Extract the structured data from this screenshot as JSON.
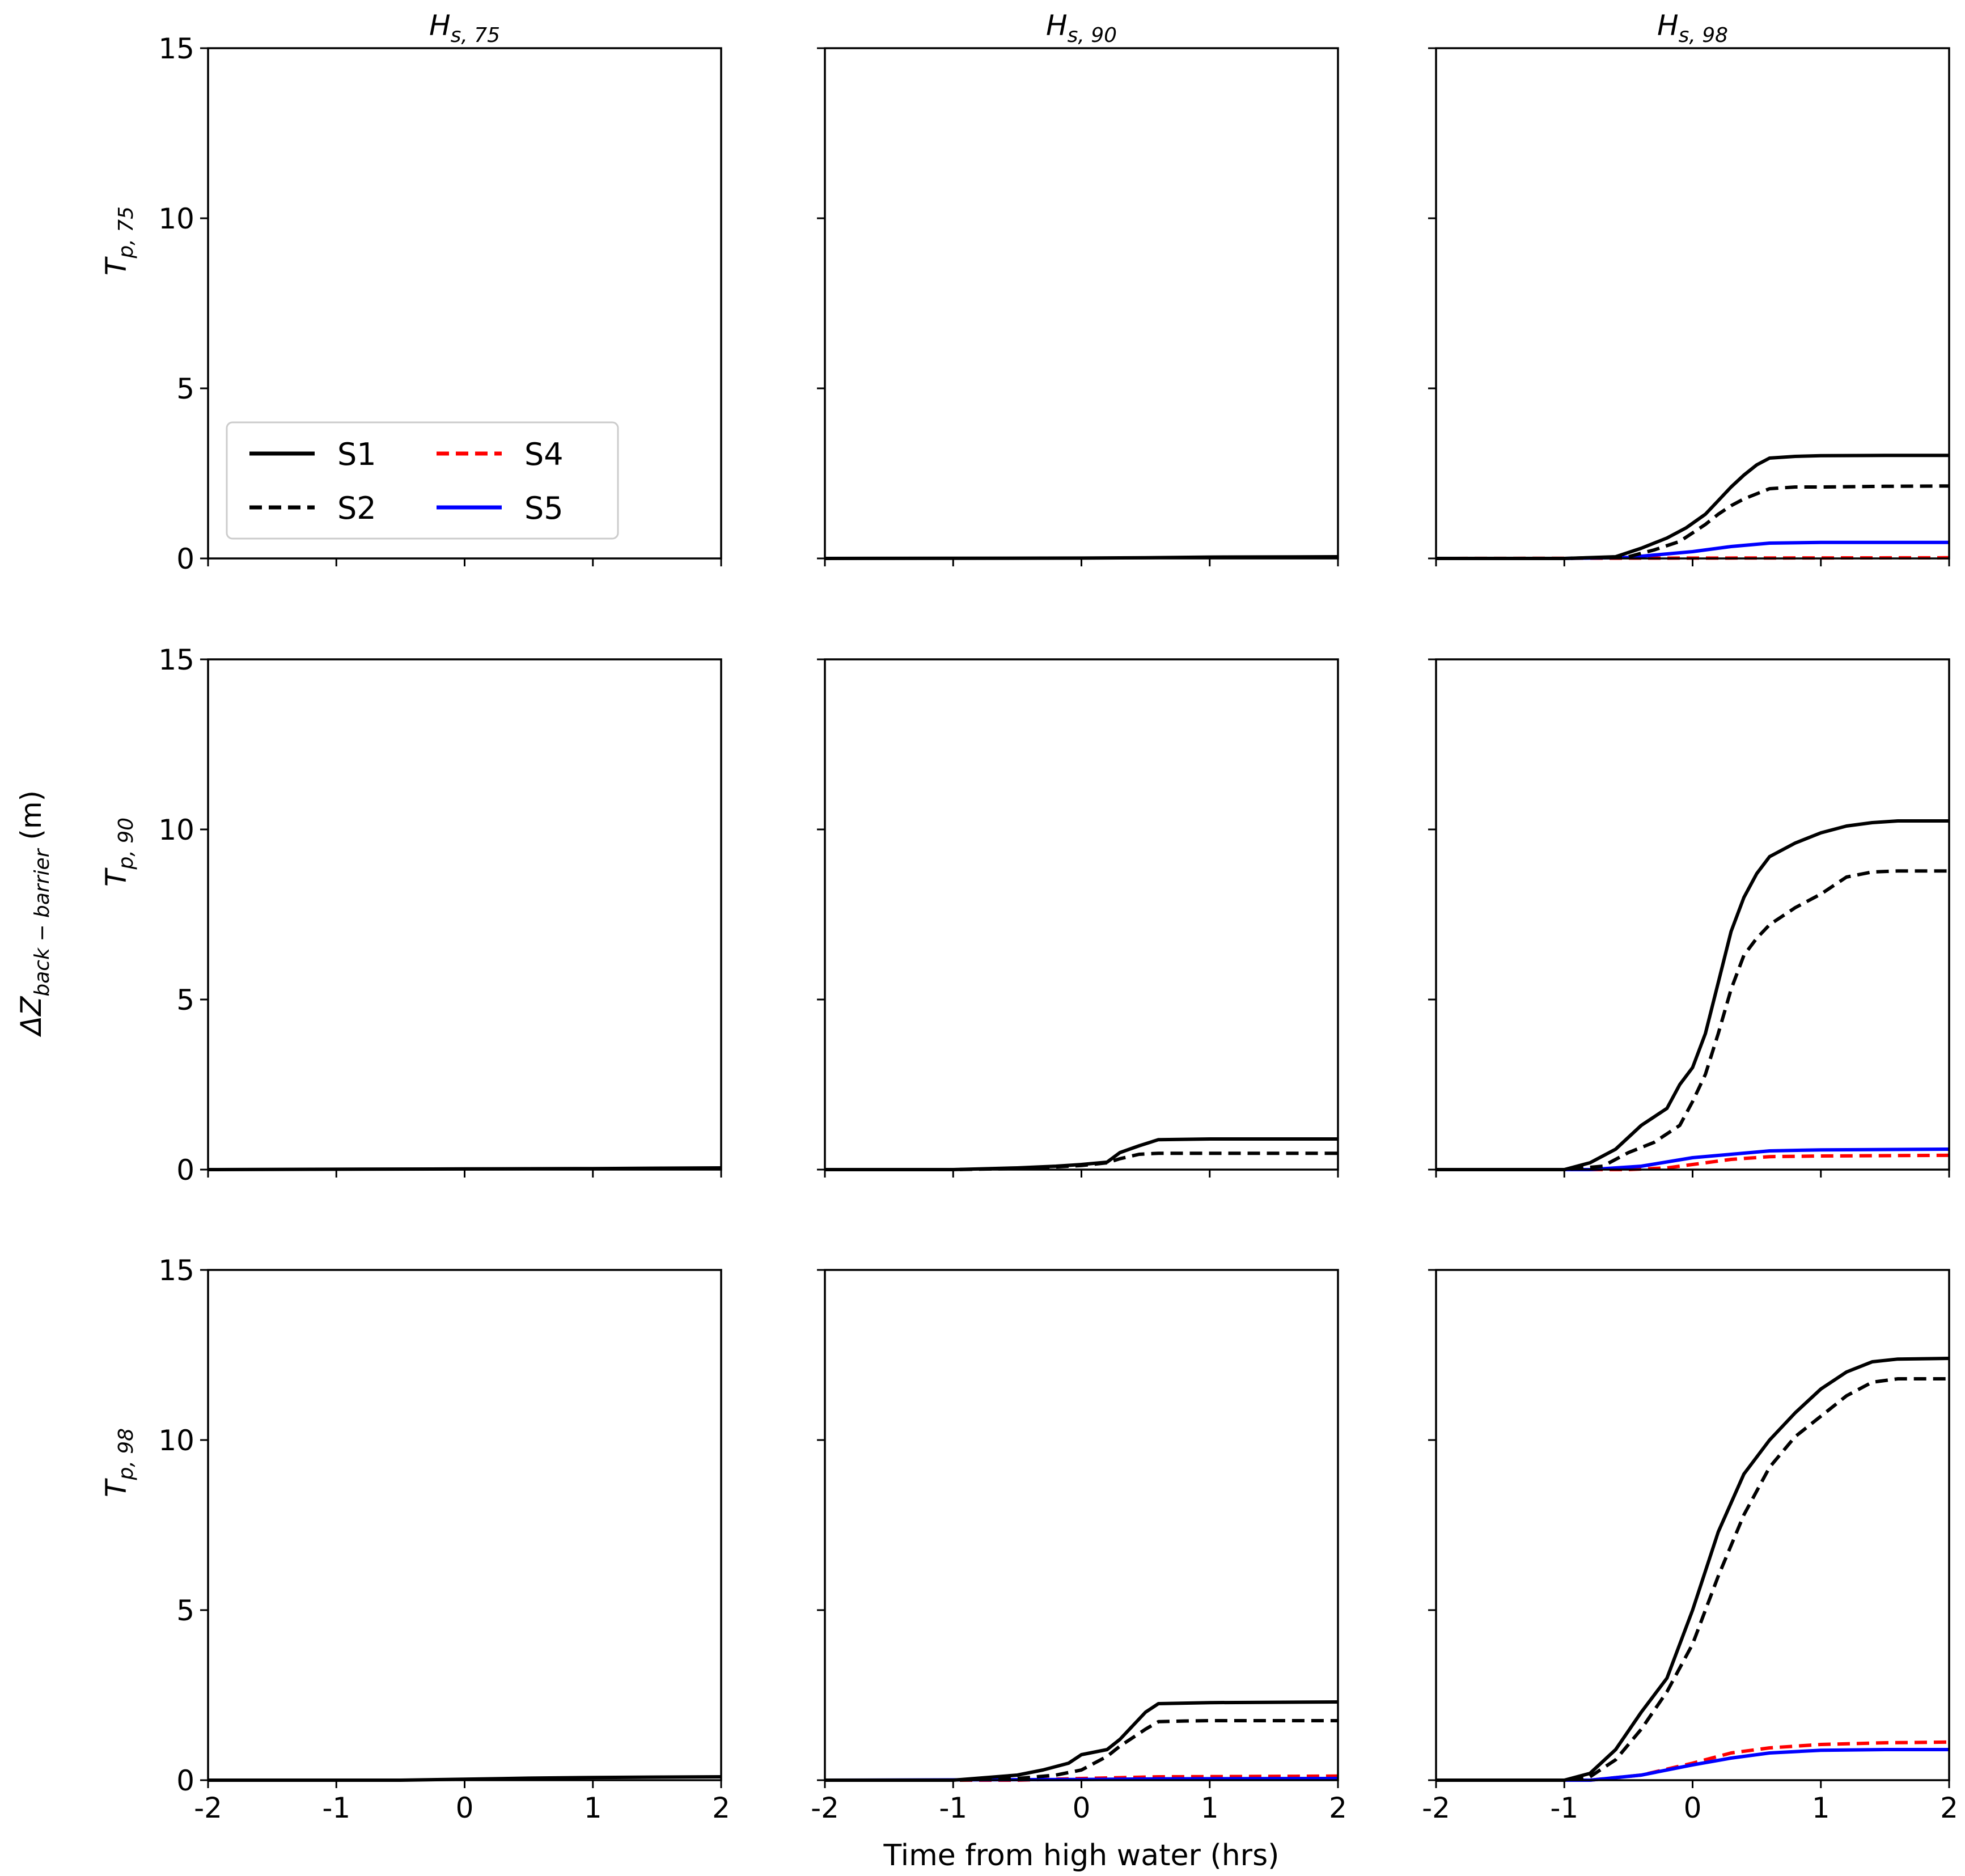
{
  "chart_data": {
    "type": "line",
    "layout": "3x3 grid of line subplots, shared axes",
    "xlabel": "Time from high water (hrs)",
    "ylabel": {
      "main": "ΔZ",
      "sub": "back − barrier",
      "unit": " (m)"
    },
    "xlim": [
      -2,
      2
    ],
    "ylim": [
      0,
      15
    ],
    "xticks": [
      -2,
      -1,
      0,
      1,
      2
    ],
    "xtick_labels": [
      "-2",
      "-1",
      "0",
      "1",
      "2"
    ],
    "yticks": [
      0,
      5,
      10,
      15
    ],
    "ytick_labels": [
      "0",
      "5",
      "10",
      "15"
    ],
    "column_titles": [
      {
        "main": "H",
        "sub": "s, 75"
      },
      {
        "main": "H",
        "sub": "s, 90"
      },
      {
        "main": "H",
        "sub": "s, 98"
      }
    ],
    "row_titles": [
      {
        "main": "T",
        "sub": "p, 75"
      },
      {
        "main": "T",
        "sub": "p, 90"
      },
      {
        "main": "T",
        "sub": "p, 98"
      }
    ],
    "legend": {
      "location": "lower-left of top-left panel",
      "entries": [
        {
          "label": "S1",
          "color": "#000000",
          "dash": "solid"
        },
        {
          "label": "S2",
          "color": "#000000",
          "dash": "dashed"
        },
        {
          "label": "S4",
          "color": "#ff0000",
          "dash": "dashed"
        },
        {
          "label": "S5",
          "color": "#0000ff",
          "dash": "solid"
        }
      ]
    },
    "panels": [
      {
        "row": 0,
        "col": 0,
        "series": []
      },
      {
        "row": 0,
        "col": 1,
        "series": [
          {
            "name": "S1",
            "x": [
              -2,
              0,
              0.5,
              1,
              2
            ],
            "y": [
              0,
              0.01,
              0.02,
              0.04,
              0.05
            ]
          }
        ]
      },
      {
        "row": 0,
        "col": 2,
        "series": [
          {
            "name": "S4",
            "x": [
              -2,
              2
            ],
            "y": [
              0,
              0.02
            ]
          },
          {
            "name": "S5",
            "x": [
              -2,
              -1,
              -0.5,
              -0.3,
              0,
              0.3,
              0.6,
              1,
              2
            ],
            "y": [
              0,
              0,
              0.03,
              0.1,
              0.2,
              0.35,
              0.45,
              0.47,
              0.47
            ]
          },
          {
            "name": "S2",
            "x": [
              -2,
              -1,
              -0.5,
              -0.3,
              -0.1,
              0,
              0.1,
              0.2,
              0.3,
              0.4,
              0.5,
              0.6,
              0.8,
              1,
              1.5,
              2
            ],
            "y": [
              0,
              0,
              0.05,
              0.25,
              0.5,
              0.75,
              1.0,
              1.3,
              1.55,
              1.75,
              1.9,
              2.05,
              2.1,
              2.1,
              2.12,
              2.13
            ]
          },
          {
            "name": "S1",
            "x": [
              -2,
              -1,
              -0.6,
              -0.4,
              -0.2,
              -0.05,
              0.1,
              0.2,
              0.3,
              0.4,
              0.5,
              0.6,
              0.8,
              1,
              1.5,
              2
            ],
            "y": [
              0,
              0,
              0.05,
              0.3,
              0.6,
              0.9,
              1.3,
              1.7,
              2.1,
              2.45,
              2.75,
              2.95,
              3.0,
              3.02,
              3.03,
              3.03
            ]
          }
        ]
      },
      {
        "row": 1,
        "col": 0,
        "series": [
          {
            "name": "S1",
            "x": [
              -2,
              0,
              1,
              2
            ],
            "y": [
              0,
              0.02,
              0.03,
              0.05
            ]
          }
        ]
      },
      {
        "row": 1,
        "col": 1,
        "series": [
          {
            "name": "S2",
            "x": [
              -2,
              -1,
              -0.5,
              -0.2,
              0,
              0.2,
              0.3,
              0.45,
              0.6,
              1,
              2
            ],
            "y": [
              0,
              0,
              0.03,
              0.08,
              0.12,
              0.2,
              0.32,
              0.45,
              0.48,
              0.48,
              0.48
            ]
          },
          {
            "name": "S1",
            "x": [
              -2,
              -1,
              -0.5,
              -0.2,
              0,
              0.2,
              0.3,
              0.45,
              0.6,
              1,
              2
            ],
            "y": [
              0,
              0,
              0.05,
              0.1,
              0.15,
              0.22,
              0.5,
              0.7,
              0.88,
              0.9,
              0.9
            ]
          }
        ]
      },
      {
        "row": 1,
        "col": 2,
        "series": [
          {
            "name": "S4",
            "x": [
              -2,
              -0.5,
              -0.2,
              0,
              0.3,
              0.6,
              1,
              2
            ],
            "y": [
              0,
              0,
              0.05,
              0.15,
              0.3,
              0.38,
              0.4,
              0.42
            ]
          },
          {
            "name": "S5",
            "x": [
              -2,
              -0.8,
              -0.4,
              0,
              0.3,
              0.6,
              1,
              2
            ],
            "y": [
              0,
              0,
              0.1,
              0.35,
              0.45,
              0.55,
              0.58,
              0.6
            ]
          },
          {
            "name": "S2",
            "x": [
              -2,
              -1,
              -0.7,
              -0.5,
              -0.3,
              -0.1,
              0,
              0.1,
              0.2,
              0.3,
              0.4,
              0.5,
              0.6,
              0.8,
              1,
              1.2,
              1.4,
              1.6,
              2
            ],
            "y": [
              0,
              0,
              0.1,
              0.5,
              0.8,
              1.3,
              2.0,
              2.8,
              4.0,
              5.3,
              6.3,
              6.8,
              7.2,
              7.7,
              8.1,
              8.6,
              8.75,
              8.78,
              8.78
            ]
          },
          {
            "name": "S1",
            "x": [
              -2,
              -1,
              -0.8,
              -0.6,
              -0.4,
              -0.2,
              -0.1,
              0,
              0.1,
              0.2,
              0.3,
              0.4,
              0.5,
              0.6,
              0.8,
              1,
              1.2,
              1.4,
              1.6,
              2
            ],
            "y": [
              0,
              0,
              0.2,
              0.6,
              1.3,
              1.8,
              2.5,
              3.0,
              4.0,
              5.5,
              7.0,
              8.0,
              8.7,
              9.2,
              9.6,
              9.9,
              10.1,
              10.2,
              10.25,
              10.25
            ]
          }
        ]
      },
      {
        "row": 2,
        "col": 0,
        "series": [
          {
            "name": "S1",
            "x": [
              -2,
              -0.5,
              0,
              0.5,
              1,
              2
            ],
            "y": [
              0,
              0,
              0.03,
              0.06,
              0.08,
              0.1
            ]
          }
        ]
      },
      {
        "row": 2,
        "col": 1,
        "series": [
          {
            "name": "S4",
            "x": [
              -2,
              -0.5,
              0,
              0.6,
              2
            ],
            "y": [
              0,
              0,
              0.05,
              0.1,
              0.12
            ]
          },
          {
            "name": "S5",
            "x": [
              -2,
              0,
              0.6,
              2
            ],
            "y": [
              0,
              0.02,
              0.04,
              0.05
            ]
          },
          {
            "name": "S2",
            "x": [
              -2,
              -1,
              -0.5,
              -0.2,
              0,
              0.2,
              0.3,
              0.5,
              0.6,
              0.8,
              1,
              2
            ],
            "y": [
              0,
              0,
              0.05,
              0.15,
              0.3,
              0.7,
              1.0,
              1.5,
              1.72,
              1.74,
              1.75,
              1.75
            ]
          },
          {
            "name": "S1",
            "x": [
              -2,
              -1,
              -0.5,
              -0.3,
              -0.1,
              0,
              0.2,
              0.3,
              0.4,
              0.5,
              0.6,
              1,
              2
            ],
            "y": [
              0,
              0,
              0.15,
              0.3,
              0.5,
              0.75,
              0.9,
              1.2,
              1.6,
              2.0,
              2.25,
              2.28,
              2.3
            ]
          }
        ]
      },
      {
        "row": 2,
        "col": 2,
        "series": [
          {
            "name": "S4",
            "x": [
              -2,
              -0.8,
              -0.4,
              0,
              0.3,
              0.6,
              1,
              1.5,
              2
            ],
            "y": [
              0,
              0,
              0.15,
              0.5,
              0.8,
              0.95,
              1.05,
              1.1,
              1.12
            ]
          },
          {
            "name": "S5",
            "x": [
              -2,
              -0.8,
              -0.4,
              0,
              0.3,
              0.6,
              1,
              1.5,
              2
            ],
            "y": [
              0,
              0,
              0.15,
              0.45,
              0.65,
              0.8,
              0.88,
              0.9,
              0.9
            ]
          },
          {
            "name": "S2",
            "x": [
              -2,
              -1,
              -0.8,
              -0.6,
              -0.4,
              -0.2,
              0,
              0.2,
              0.4,
              0.6,
              0.8,
              1,
              1.2,
              1.4,
              1.6,
              2
            ],
            "y": [
              0,
              0,
              0.1,
              0.6,
              1.5,
              2.6,
              4.0,
              6.0,
              7.8,
              9.2,
              10.1,
              10.7,
              11.3,
              11.7,
              11.8,
              11.8
            ]
          },
          {
            "name": "S1",
            "x": [
              -2,
              -1,
              -0.8,
              -0.6,
              -0.4,
              -0.2,
              0,
              0.2,
              0.4,
              0.6,
              0.8,
              1,
              1.2,
              1.4,
              1.6,
              2
            ],
            "y": [
              0,
              0,
              0.2,
              0.9,
              2.0,
              3.0,
              5.0,
              7.3,
              9.0,
              10.0,
              10.8,
              11.5,
              12.0,
              12.3,
              12.38,
              12.4
            ]
          }
        ]
      }
    ]
  }
}
